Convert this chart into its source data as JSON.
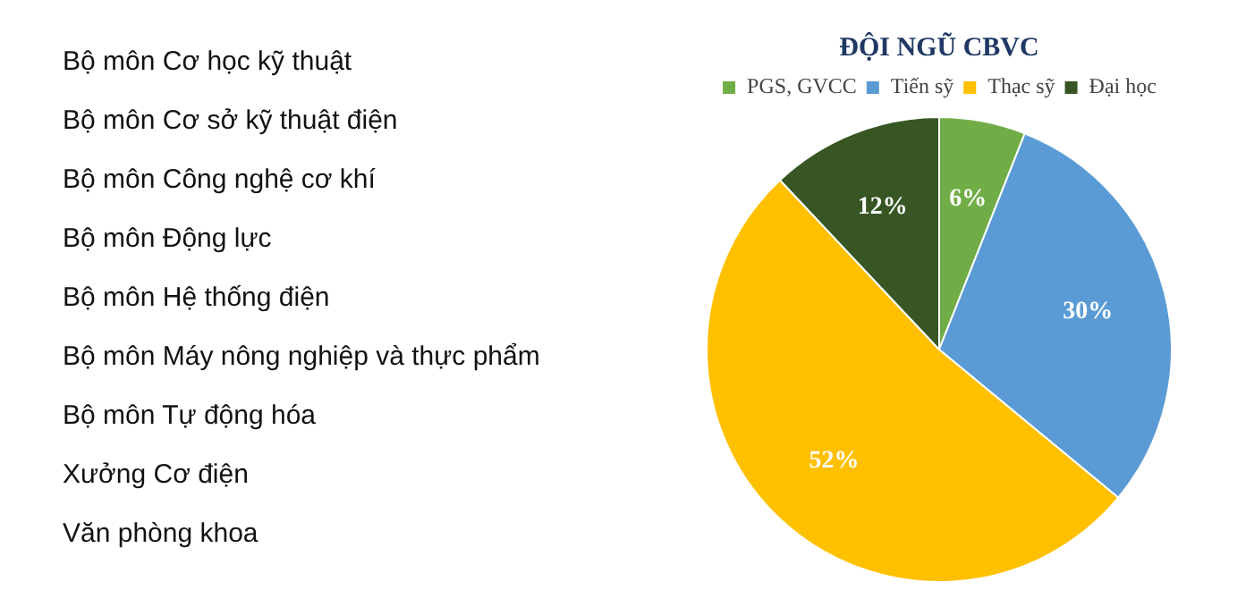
{
  "chart_data": [
    {
      "type": "other",
      "annotations": [
        "Bộ môn Cơ học kỹ thuật",
        "Bộ môn Cơ sở kỹ thuật điện",
        "Bộ môn Công nghệ cơ khí",
        "Bộ môn Động lực",
        "Bộ môn Hệ thống điện",
        "Bộ môn Máy nông nghiệp và thực phẩm",
        "Bộ môn Tự động hóa",
        "Xưởng Cơ điện",
        "Văn phòng khoa"
      ]
    },
    {
      "type": "pie",
      "title": "ĐỘI NGŨ CBVC",
      "categories": [
        "PGS, GVCC",
        "Tiến sỹ",
        "Thạc sỹ",
        "Đại học"
      ],
      "values": [
        6,
        30,
        52,
        12
      ],
      "colors": [
        "#70ad47",
        "#5b9bd5",
        "#ffc000",
        "#375623"
      ],
      "value_labels": [
        "6%",
        "30%",
        "52%",
        "12%"
      ],
      "legend": "top"
    }
  ]
}
